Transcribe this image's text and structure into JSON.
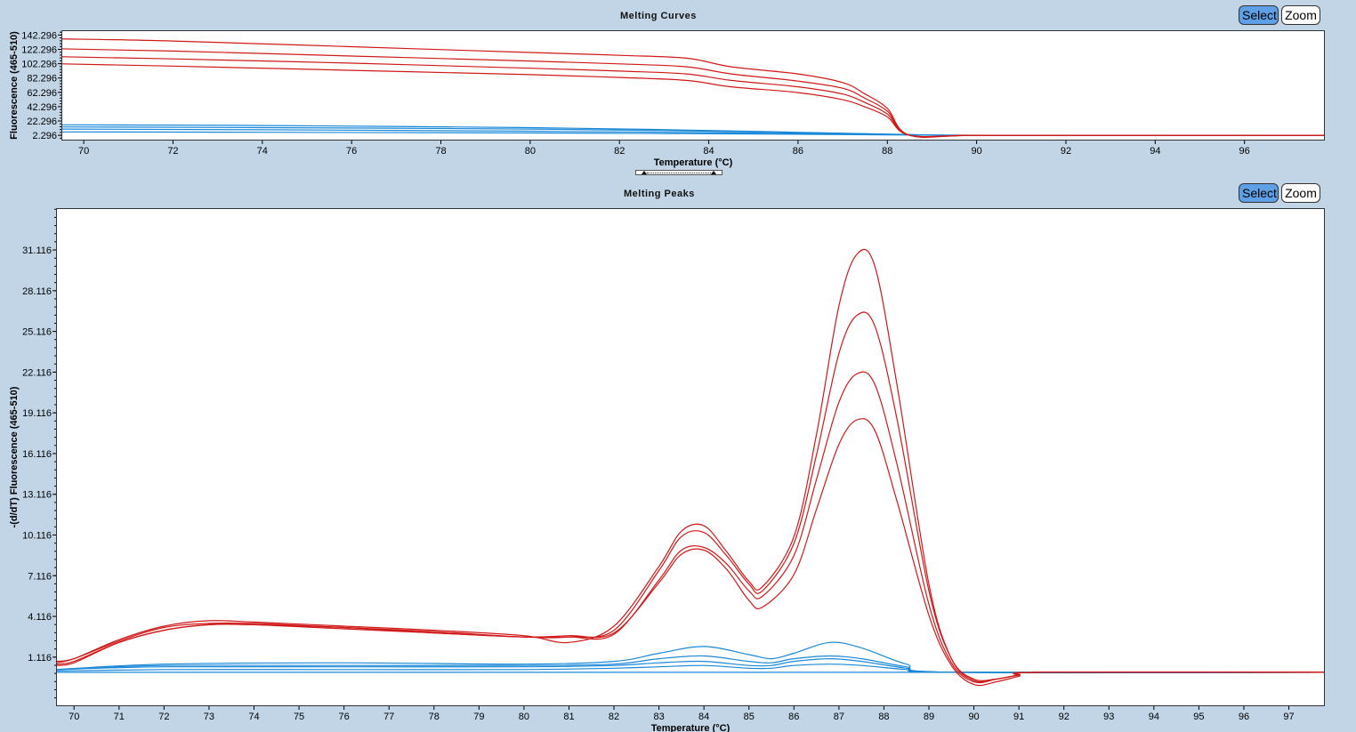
{
  "colors": {
    "red": "#d01818",
    "blue": "#1a88d8"
  },
  "panels": {
    "curves": {
      "title": "Melting Curves",
      "select_label": "Select",
      "zoom_label": "Zoom"
    },
    "peaks": {
      "title": "Melting Peaks",
      "select_label": "Select",
      "zoom_label": "Zoom"
    }
  },
  "chart_data": [
    {
      "type": "line",
      "title": "Melting Curves",
      "xlabel": "Temperature (°C)",
      "ylabel": "Fluorescence (465-510)",
      "xlim": [
        69.5,
        97.8
      ],
      "ylim": [
        -5,
        149
      ],
      "x_ticks": [
        "70",
        "72",
        "74",
        "76",
        "78",
        "80",
        "82",
        "84",
        "86",
        "88",
        "90",
        "92",
        "94",
        "96"
      ],
      "y_ticks": [
        "142.296",
        "122.296",
        "102.296",
        "82.296",
        "62.296",
        "42.296",
        "22.296",
        "2.296"
      ],
      "grid": false,
      "series": [
        {
          "group": "red",
          "x": [
            69.5,
            72,
            76,
            80,
            82,
            83.5,
            84.5,
            86,
            87,
            87.5,
            88,
            88.5,
            90,
            94,
            97.8
          ],
          "y": [
            137,
            134,
            126,
            118,
            114,
            110,
            98,
            88,
            76,
            60,
            40,
            2.3,
            2.3,
            2.3,
            2.3
          ]
        },
        {
          "group": "red",
          "x": [
            69.5,
            72,
            76,
            80,
            82,
            83.5,
            84.5,
            86,
            87,
            87.5,
            88,
            88.5,
            90,
            94,
            97.8
          ],
          "y": [
            123,
            120,
            113,
            106,
            102,
            98,
            88,
            78,
            68,
            54,
            36,
            2.3,
            2.3,
            2.3,
            2.3
          ]
        },
        {
          "group": "red",
          "x": [
            69.5,
            72,
            76,
            80,
            82,
            83.5,
            84.5,
            86,
            87,
            87.5,
            88,
            88.5,
            90,
            94,
            97.8
          ],
          "y": [
            112,
            109,
            103,
            96,
            92,
            88,
            79,
            70,
            60,
            48,
            32,
            2.3,
            2.3,
            2.3,
            2.3
          ]
        },
        {
          "group": "red",
          "x": [
            69.5,
            72,
            76,
            80,
            82,
            83.5,
            84.5,
            86,
            87,
            87.5,
            88,
            88.5,
            90,
            94,
            97.8
          ],
          "y": [
            102,
            99,
            93,
            87,
            83,
            79,
            70,
            62,
            52,
            42,
            28,
            2.3,
            2.3,
            2.3,
            2.3
          ]
        },
        {
          "group": "blue",
          "x": [
            69.5,
            74,
            80,
            84,
            88,
            90,
            97.8
          ],
          "y": [
            17,
            16,
            13,
            9,
            4,
            2.3,
            2.3
          ]
        },
        {
          "group": "blue",
          "x": [
            69.5,
            74,
            80,
            84,
            88,
            90,
            97.8
          ],
          "y": [
            14,
            13,
            11,
            8,
            4,
            2.3,
            2.3
          ]
        },
        {
          "group": "blue",
          "x": [
            69.5,
            74,
            80,
            84,
            88,
            90,
            97.8
          ],
          "y": [
            11,
            10,
            8,
            6,
            3.5,
            2.3,
            2.3
          ]
        },
        {
          "group": "blue",
          "x": [
            69.5,
            74,
            80,
            84,
            88,
            90,
            97.8
          ],
          "y": [
            7,
            6.5,
            5.5,
            4.5,
            3,
            2.3,
            2.3
          ]
        }
      ]
    },
    {
      "type": "line",
      "title": "Melting Peaks",
      "xlabel": "Temperature (°C)",
      "ylabel": "-(d/dT) Fluorescence (465-510)",
      "xlim": [
        69.6,
        97.8
      ],
      "ylim": [
        -2.5,
        34.2
      ],
      "x_ticks": [
        "70",
        "71",
        "72",
        "73",
        "74",
        "75",
        "76",
        "77",
        "78",
        "79",
        "80",
        "81",
        "82",
        "83",
        "84",
        "85",
        "86",
        "87",
        "88",
        "89",
        "90",
        "91",
        "92",
        "93",
        "94",
        "95",
        "96",
        "97"
      ],
      "y_ticks": [
        "31.116",
        "28.116",
        "25.116",
        "22.116",
        "19.116",
        "16.116",
        "13.116",
        "10.116",
        "7.116",
        "4.116",
        "1.116"
      ],
      "grid": false,
      "series": [
        {
          "group": "red",
          "x": [
            69.6,
            70,
            71,
            72,
            73,
            74,
            76,
            78,
            80,
            81,
            82,
            83,
            83.5,
            84,
            84.5,
            85,
            85.3,
            86,
            86.5,
            87,
            87.4,
            87.8,
            88.3,
            89,
            89.5,
            90,
            90.5,
            91,
            91.5,
            97.8
          ],
          "y": [
            0.7,
            1.0,
            2.4,
            3.4,
            3.8,
            3.7,
            3.4,
            3.1,
            2.7,
            2.2,
            3.4,
            7.8,
            10.4,
            10.8,
            8.9,
            6.7,
            6.3,
            10.0,
            17.5,
            27.0,
            30.8,
            29.9,
            21.0,
            6.5,
            1.0,
            -0.6,
            -0.5,
            -0.2,
            0,
            0
          ]
        },
        {
          "group": "red",
          "x": [
            69.6,
            70,
            71,
            72,
            73,
            74,
            76,
            78,
            80,
            81,
            82,
            83,
            83.5,
            84,
            84.5,
            85,
            85.3,
            86,
            86.5,
            87,
            87.4,
            87.8,
            88.3,
            89,
            89.5,
            90,
            90.5,
            91,
            91.5,
            97.8
          ],
          "y": [
            0.8,
            1.0,
            2.3,
            3.3,
            3.6,
            3.6,
            3.3,
            3.0,
            2.6,
            2.6,
            3.1,
            7.5,
            10.0,
            10.3,
            8.6,
            6.5,
            6.0,
            9.5,
            16.0,
            23.5,
            26.3,
            25.5,
            18.5,
            6.0,
            1.0,
            -0.5,
            -0.5,
            -0.2,
            0,
            0
          ]
        },
        {
          "group": "red",
          "x": [
            69.6,
            70,
            71,
            72,
            73,
            74,
            76,
            78,
            80,
            81,
            82,
            83,
            83.5,
            84,
            84.5,
            85,
            85.3,
            86,
            86.5,
            87,
            87.4,
            87.8,
            88.3,
            89,
            89.5,
            90,
            90.5,
            91,
            91.5,
            97.8
          ],
          "y": [
            0.6,
            0.8,
            2.2,
            3.1,
            3.5,
            3.5,
            3.3,
            2.9,
            2.6,
            2.6,
            2.8,
            6.8,
            9.0,
            9.2,
            8.0,
            6.0,
            5.6,
            8.6,
            14.2,
            19.9,
            22.0,
            21.2,
            15.2,
            5.0,
            0.7,
            -0.7,
            -0.5,
            -0.2,
            0,
            0
          ]
        },
        {
          "group": "red",
          "x": [
            69.6,
            70,
            71,
            72,
            73,
            74,
            76,
            78,
            80,
            81,
            82,
            83,
            83.5,
            84,
            84.5,
            85,
            85.3,
            86,
            86.5,
            87,
            87.4,
            87.8,
            88.3,
            89,
            89.5,
            90,
            90.5,
            91,
            91.5,
            97.8
          ],
          "y": [
            0.5,
            0.7,
            2.2,
            3.1,
            3.5,
            3.5,
            3.2,
            2.9,
            2.6,
            2.7,
            2.9,
            6.6,
            8.7,
            9.0,
            7.6,
            5.3,
            4.8,
            7.2,
            12.0,
            16.8,
            18.6,
            17.8,
            12.5,
            4.2,
            0.5,
            -0.9,
            -0.7,
            -0.3,
            0,
            0
          ]
        },
        {
          "group": "blue",
          "x": [
            69.6,
            72,
            76,
            80,
            82,
            83,
            84,
            85,
            85.5,
            86,
            86.8,
            87.5,
            88.5,
            89.5,
            97.8
          ],
          "y": [
            0.2,
            0.6,
            0.7,
            0.6,
            0.8,
            1.4,
            1.9,
            1.3,
            1.0,
            1.4,
            2.2,
            1.8,
            0.6,
            0,
            0
          ]
        },
        {
          "group": "blue",
          "x": [
            69.6,
            72,
            76,
            80,
            82,
            83,
            84,
            85,
            85.5,
            86,
            86.8,
            87.5,
            88.5,
            89.5,
            97.8
          ],
          "y": [
            0.2,
            0.5,
            0.5,
            0.5,
            0.6,
            1.0,
            1.2,
            0.8,
            0.7,
            1.0,
            1.2,
            1.0,
            0.4,
            0,
            0
          ]
        },
        {
          "group": "blue",
          "x": [
            69.6,
            72,
            76,
            80,
            82,
            83,
            84,
            85,
            85.5,
            86,
            86.8,
            87.5,
            88.5,
            89.5,
            97.8
          ],
          "y": [
            0.2,
            0.4,
            0.4,
            0.4,
            0.5,
            0.7,
            0.8,
            0.5,
            0.5,
            0.8,
            1.0,
            0.8,
            0.3,
            0,
            0
          ]
        },
        {
          "group": "blue",
          "x": [
            69.6,
            72,
            76,
            80,
            82,
            83,
            84,
            85,
            85.5,
            86,
            86.8,
            87.5,
            88.5,
            89.5,
            97.8
          ],
          "y": [
            0.1,
            0.2,
            0.2,
            0.2,
            0.3,
            0.4,
            0.5,
            0.3,
            0.3,
            0.5,
            0.6,
            0.5,
            0.2,
            0,
            0
          ]
        },
        {
          "group": "blue",
          "x": [
            69.6,
            72,
            76,
            80,
            84,
            88,
            90,
            97.8
          ],
          "y": [
            0,
            0,
            0,
            0,
            0,
            0,
            0,
            0
          ]
        }
      ]
    }
  ]
}
